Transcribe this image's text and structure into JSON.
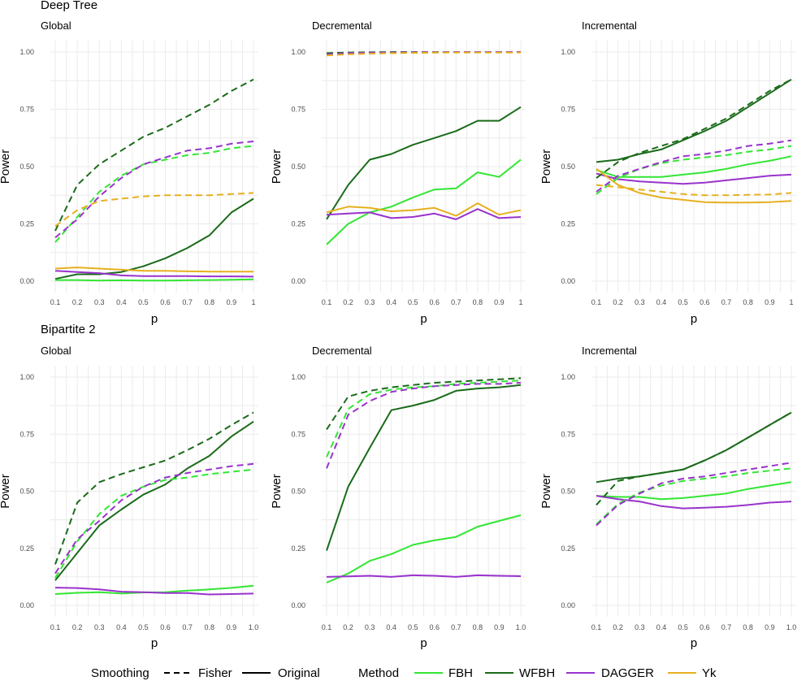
{
  "legend": {
    "smoothing_title": "Smoothing",
    "smoothing_items": [
      {
        "label": "Fisher",
        "dash": "dashed"
      },
      {
        "label": "Original",
        "dash": "solid"
      }
    ],
    "method_title": "Method",
    "method_items": [
      {
        "label": "FBH",
        "color": "#33e633"
      },
      {
        "label": "WFBH",
        "color": "#1a6b1a"
      },
      {
        "label": "DAGGER",
        "color": "#9933cc"
      },
      {
        "label": "Yk",
        "color": "#e6b01f"
      }
    ]
  },
  "chart_data": [
    {
      "type": "line",
      "row_title": "Deep Tree",
      "title": "Global",
      "xlabel": "p",
      "ylabel": "Power",
      "x": [
        0.1,
        0.2,
        0.3,
        0.4,
        0.5,
        0.6,
        0.7,
        0.8,
        0.9,
        1.0
      ],
      "x_tick_labels": [
        "0.1",
        "0.2",
        "0.3",
        "0.4",
        "0.5",
        "0.6",
        "0.7",
        "0.8",
        "0.9",
        "1"
      ],
      "ylim": [
        0,
        1
      ],
      "y_ticks": [
        "0.00",
        "0.25",
        "0.50",
        "0.75",
        "1.00"
      ],
      "series": [
        {
          "method": "WFBH",
          "smoothing": "Fisher",
          "values": [
            0.22,
            0.42,
            0.51,
            0.57,
            0.63,
            0.67,
            0.72,
            0.77,
            0.83,
            0.88
          ]
        },
        {
          "method": "FBH",
          "smoothing": "Fisher",
          "values": [
            0.17,
            0.28,
            0.39,
            0.46,
            0.51,
            0.53,
            0.55,
            0.56,
            0.58,
            0.59
          ]
        },
        {
          "method": "DAGGER",
          "smoothing": "Fisher",
          "values": [
            0.19,
            0.27,
            0.37,
            0.45,
            0.51,
            0.54,
            0.57,
            0.58,
            0.6,
            0.61
          ]
        },
        {
          "method": "Yk",
          "smoothing": "Fisher",
          "values": [
            0.24,
            0.31,
            0.35,
            0.36,
            0.37,
            0.375,
            0.375,
            0.375,
            0.38,
            0.385
          ]
        },
        {
          "method": "WFBH",
          "smoothing": "Original",
          "values": [
            0.01,
            0.03,
            0.03,
            0.04,
            0.065,
            0.1,
            0.145,
            0.2,
            0.3,
            0.36
          ]
        },
        {
          "method": "FBH",
          "smoothing": "Original",
          "values": [
            0.005,
            0.005,
            0.003,
            0.004,
            0.003,
            0.003,
            0.004,
            0.005,
            0.006,
            0.008
          ]
        },
        {
          "method": "DAGGER",
          "smoothing": "Original",
          "values": [
            0.045,
            0.04,
            0.035,
            0.025,
            0.022,
            0.022,
            0.022,
            0.021,
            0.021,
            0.02
          ]
        },
        {
          "method": "Yk",
          "smoothing": "Original",
          "values": [
            0.055,
            0.06,
            0.055,
            0.05,
            0.045,
            0.045,
            0.043,
            0.042,
            0.042,
            0.042
          ]
        }
      ]
    },
    {
      "type": "line",
      "row_title": "",
      "title": "Decremental",
      "xlabel": "p",
      "ylabel": "Power",
      "x": [
        0.1,
        0.2,
        0.3,
        0.4,
        0.5,
        0.6,
        0.7,
        0.8,
        0.9,
        1.0
      ],
      "x_tick_labels": [
        "0.1",
        "0.2",
        "0.3",
        "0.4",
        "0.5",
        "0.6",
        "0.7",
        "0.8",
        "0.9",
        "1"
      ],
      "ylim": [
        0,
        1
      ],
      "y_ticks": [
        "0.00",
        "0.25",
        "0.50",
        "0.75",
        "1.00"
      ],
      "series": [
        {
          "method": "WFBH",
          "smoothing": "Fisher",
          "values": [
            0.995,
            0.998,
            0.999,
            1.0,
            1.0,
            1.0,
            1.0,
            1.0,
            1.0,
            1.0
          ]
        },
        {
          "method": "FBH",
          "smoothing": "Fisher",
          "values": [
            0.99,
            0.995,
            0.997,
            0.998,
            0.999,
            0.999,
            1.0,
            1.0,
            1.0,
            1.0
          ]
        },
        {
          "method": "DAGGER",
          "smoothing": "Fisher",
          "values": [
            0.99,
            0.995,
            0.997,
            0.998,
            0.999,
            0.999,
            1.0,
            1.0,
            1.0,
            1.0
          ]
        },
        {
          "method": "Yk",
          "smoothing": "Fisher",
          "values": [
            0.985,
            0.99,
            0.993,
            0.995,
            0.996,
            0.997,
            0.998,
            0.998,
            0.998,
            0.998
          ]
        },
        {
          "method": "WFBH",
          "smoothing": "Original",
          "values": [
            0.27,
            0.42,
            0.53,
            0.555,
            0.595,
            0.625,
            0.655,
            0.7,
            0.7,
            0.76
          ]
        },
        {
          "method": "FBH",
          "smoothing": "Original",
          "values": [
            0.16,
            0.25,
            0.3,
            0.325,
            0.365,
            0.4,
            0.405,
            0.475,
            0.455,
            0.53
          ]
        },
        {
          "method": "DAGGER",
          "smoothing": "Original",
          "values": [
            0.29,
            0.295,
            0.3,
            0.275,
            0.28,
            0.295,
            0.27,
            0.315,
            0.275,
            0.28
          ]
        },
        {
          "method": "Yk",
          "smoothing": "Original",
          "values": [
            0.3,
            0.325,
            0.32,
            0.305,
            0.31,
            0.32,
            0.285,
            0.34,
            0.29,
            0.31
          ]
        }
      ]
    },
    {
      "type": "line",
      "row_title": "",
      "title": "Incremental",
      "xlabel": "p",
      "ylabel": "Power",
      "x": [
        0.1,
        0.2,
        0.3,
        0.4,
        0.5,
        0.6,
        0.7,
        0.8,
        0.9,
        1.0
      ],
      "x_tick_labels": [
        "0.1",
        "0.2",
        "0.3",
        "0.4",
        "0.5",
        "0.6",
        "0.7",
        "0.8",
        "0.9",
        "1"
      ],
      "ylim": [
        0,
        1
      ],
      "y_ticks": [
        "0.00",
        "0.25",
        "0.50",
        "0.75",
        "1.00"
      ],
      "series": [
        {
          "method": "WFBH",
          "smoothing": "Fisher",
          "values": [
            0.45,
            0.52,
            0.56,
            0.59,
            0.62,
            0.665,
            0.71,
            0.77,
            0.83,
            0.88
          ]
        },
        {
          "method": "FBH",
          "smoothing": "Fisher",
          "values": [
            0.38,
            0.45,
            0.49,
            0.515,
            0.53,
            0.54,
            0.55,
            0.565,
            0.575,
            0.59
          ]
        },
        {
          "method": "DAGGER",
          "smoothing": "Fisher",
          "values": [
            0.39,
            0.46,
            0.49,
            0.52,
            0.545,
            0.555,
            0.57,
            0.59,
            0.6,
            0.615
          ]
        },
        {
          "method": "Yk",
          "smoothing": "Fisher",
          "values": [
            0.42,
            0.41,
            0.4,
            0.39,
            0.38,
            0.375,
            0.375,
            0.377,
            0.378,
            0.385
          ]
        },
        {
          "method": "WFBH",
          "smoothing": "Original",
          "values": [
            0.52,
            0.53,
            0.555,
            0.575,
            0.615,
            0.655,
            0.7,
            0.76,
            0.82,
            0.88
          ]
        },
        {
          "method": "FBH",
          "smoothing": "Original",
          "values": [
            0.485,
            0.455,
            0.455,
            0.455,
            0.465,
            0.475,
            0.49,
            0.51,
            0.525,
            0.545
          ]
        },
        {
          "method": "DAGGER",
          "smoothing": "Original",
          "values": [
            0.47,
            0.445,
            0.435,
            0.43,
            0.425,
            0.43,
            0.44,
            0.45,
            0.46,
            0.465
          ]
        },
        {
          "method": "Yk",
          "smoothing": "Original",
          "values": [
            0.49,
            0.42,
            0.385,
            0.365,
            0.355,
            0.345,
            0.343,
            0.343,
            0.345,
            0.35
          ]
        }
      ]
    },
    {
      "type": "line",
      "row_title": "Bipartite 2",
      "title": "Global",
      "xlabel": "p",
      "ylabel": "Power",
      "x": [
        0.1,
        0.2,
        0.3,
        0.4,
        0.5,
        0.6,
        0.7,
        0.8,
        0.9,
        1.0
      ],
      "x_tick_labels": [
        "0.1",
        "0.2",
        "0.3",
        "0.4",
        "0.5",
        "0.6",
        "0.7",
        "0.8",
        "0.9",
        "1.0"
      ],
      "ylim": [
        0,
        1
      ],
      "y_ticks": [
        "0.00",
        "0.25",
        "0.50",
        "0.75",
        "1.00"
      ],
      "series": [
        {
          "method": "WFBH",
          "smoothing": "Fisher",
          "values": [
            0.18,
            0.45,
            0.54,
            0.575,
            0.605,
            0.635,
            0.68,
            0.73,
            0.79,
            0.845
          ]
        },
        {
          "method": "FBH",
          "smoothing": "Fisher",
          "values": [
            0.12,
            0.28,
            0.4,
            0.48,
            0.52,
            0.55,
            0.56,
            0.575,
            0.585,
            0.595
          ]
        },
        {
          "method": "DAGGER",
          "smoothing": "Fisher",
          "values": [
            0.14,
            0.29,
            0.37,
            0.46,
            0.52,
            0.56,
            0.58,
            0.595,
            0.61,
            0.62
          ]
        },
        {
          "method": "WFBH",
          "smoothing": "Original",
          "values": [
            0.11,
            0.23,
            0.35,
            0.42,
            0.485,
            0.53,
            0.6,
            0.655,
            0.74,
            0.805
          ]
        },
        {
          "method": "FBH",
          "smoothing": "Original",
          "values": [
            0.05,
            0.055,
            0.058,
            0.052,
            0.057,
            0.058,
            0.065,
            0.07,
            0.077,
            0.086
          ]
        },
        {
          "method": "DAGGER",
          "smoothing": "Original",
          "values": [
            0.078,
            0.076,
            0.07,
            0.06,
            0.058,
            0.054,
            0.054,
            0.048,
            0.05,
            0.052
          ]
        }
      ]
    },
    {
      "type": "line",
      "row_title": "",
      "title": "Decremental",
      "xlabel": "p",
      "ylabel": "Power",
      "x": [
        0.1,
        0.2,
        0.3,
        0.4,
        0.5,
        0.6,
        0.7,
        0.8,
        0.9,
        1.0
      ],
      "x_tick_labels": [
        "0.1",
        "0.2",
        "0.3",
        "0.4",
        "0.5",
        "0.6",
        "0.7",
        "0.8",
        "0.9",
        "1.0"
      ],
      "ylim": [
        0,
        1
      ],
      "y_ticks": [
        "0.00",
        "0.25",
        "0.50",
        "0.75",
        "1.00"
      ],
      "series": [
        {
          "method": "WFBH",
          "smoothing": "Fisher",
          "values": [
            0.77,
            0.915,
            0.94,
            0.955,
            0.965,
            0.975,
            0.98,
            0.985,
            0.99,
            0.995
          ]
        },
        {
          "method": "FBH",
          "smoothing": "Fisher",
          "values": [
            0.65,
            0.86,
            0.925,
            0.945,
            0.955,
            0.96,
            0.97,
            0.975,
            0.98,
            0.985
          ]
        },
        {
          "method": "DAGGER",
          "smoothing": "Fisher",
          "values": [
            0.6,
            0.835,
            0.895,
            0.935,
            0.95,
            0.96,
            0.965,
            0.97,
            0.97,
            0.975
          ]
        },
        {
          "method": "WFBH",
          "smoothing": "Original",
          "values": [
            0.24,
            0.52,
            0.69,
            0.855,
            0.875,
            0.9,
            0.94,
            0.95,
            0.955,
            0.965
          ]
        },
        {
          "method": "FBH",
          "smoothing": "Original",
          "values": [
            0.1,
            0.14,
            0.195,
            0.225,
            0.265,
            0.285,
            0.3,
            0.345,
            0.37,
            0.395
          ]
        },
        {
          "method": "DAGGER",
          "smoothing": "Original",
          "values": [
            0.125,
            0.127,
            0.13,
            0.125,
            0.132,
            0.13,
            0.125,
            0.132,
            0.13,
            0.128
          ]
        }
      ]
    },
    {
      "type": "line",
      "row_title": "",
      "title": "Incremental",
      "xlabel": "p",
      "ylabel": "Power",
      "x": [
        0.1,
        0.2,
        0.3,
        0.4,
        0.5,
        0.6,
        0.7,
        0.8,
        0.9,
        1.0
      ],
      "x_tick_labels": [
        "0.1",
        "0.2",
        "0.3",
        "0.4",
        "0.5",
        "0.6",
        "0.7",
        "0.8",
        "0.9",
        "1.0"
      ],
      "ylim": [
        0,
        1
      ],
      "y_ticks": [
        "0.00",
        "0.25",
        "0.50",
        "0.75",
        "1.00"
      ],
      "series": [
        {
          "method": "WFBH",
          "smoothing": "Fisher",
          "values": [
            0.44,
            0.545,
            0.565,
            0.58,
            0.595,
            0.635,
            0.68,
            0.735,
            0.79,
            0.845
          ]
        },
        {
          "method": "FBH",
          "smoothing": "Fisher",
          "values": [
            0.355,
            0.445,
            0.495,
            0.525,
            0.545,
            0.555,
            0.565,
            0.58,
            0.59,
            0.6
          ]
        },
        {
          "method": "DAGGER",
          "smoothing": "Fisher",
          "values": [
            0.35,
            0.44,
            0.49,
            0.535,
            0.555,
            0.565,
            0.58,
            0.595,
            0.61,
            0.625
          ]
        },
        {
          "method": "WFBH",
          "smoothing": "Original",
          "values": [
            0.54,
            0.555,
            0.565,
            0.58,
            0.595,
            0.635,
            0.68,
            0.735,
            0.79,
            0.845
          ]
        },
        {
          "method": "FBH",
          "smoothing": "Original",
          "values": [
            0.48,
            0.475,
            0.475,
            0.465,
            0.47,
            0.48,
            0.49,
            0.51,
            0.525,
            0.54
          ]
        },
        {
          "method": "DAGGER",
          "smoothing": "Original",
          "values": [
            0.48,
            0.465,
            0.455,
            0.435,
            0.425,
            0.428,
            0.432,
            0.44,
            0.45,
            0.455
          ]
        }
      ]
    }
  ]
}
